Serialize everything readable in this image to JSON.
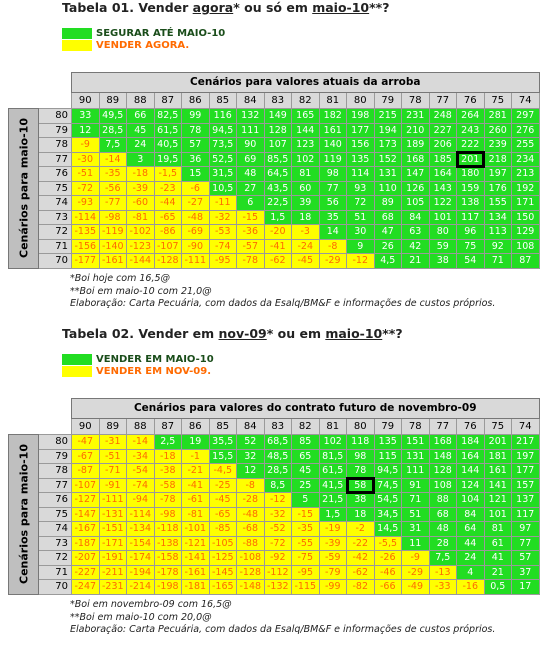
{
  "tables": [
    {
      "title": [
        "Tabela 01. Vender ",
        {
          "text": "agora",
          "underline": true
        },
        "* ou só em ",
        {
          "text": "maio-10",
          "underline": true
        },
        "**?"
      ],
      "legend": [
        {
          "label": "SEGURAR ATÉ MAIO-10",
          "color": "#22dd22"
        },
        {
          "label": "VENDER AGORA.",
          "color": "#ffff00"
        }
      ],
      "header": "Cenários para valores atuais da arroba",
      "row_axis_label": "Cenários para maio-10",
      "columns": [
        "90",
        "89",
        "88",
        "87",
        "86",
        "85",
        "84",
        "83",
        "82",
        "81",
        "80",
        "79",
        "78",
        "77",
        "76",
        "75",
        "74"
      ],
      "rows": [
        {
          "label": "80",
          "cells": [
            "33",
            "49,5",
            "66",
            "82,5",
            "99",
            "116",
            "132",
            "149",
            "165",
            "182",
            "198",
            "215",
            "231",
            "248",
            "264",
            "281",
            "297"
          ]
        },
        {
          "label": "79",
          "cells": [
            "12",
            "28,5",
            "45",
            "61,5",
            "78",
            "94,5",
            "111",
            "128",
            "144",
            "161",
            "177",
            "194",
            "210",
            "227",
            "243",
            "260",
            "276"
          ]
        },
        {
          "label": "78",
          "cells": [
            "-9",
            "7,5",
            "24",
            "40,5",
            "57",
            "73,5",
            "90",
            "107",
            "123",
            "140",
            "156",
            "173",
            "189",
            "206",
            "222",
            "239",
            "255"
          ]
        },
        {
          "label": "77",
          "cells": [
            "-30",
            "-14",
            "3",
            "19,5",
            "36",
            "52,5",
            "69",
            "85,5",
            "102",
            "119",
            "135",
            "152",
            "168",
            "185",
            "201",
            "218",
            "234"
          ]
        },
        {
          "label": "76",
          "cells": [
            "-51",
            "-35",
            "-18",
            "-1,5",
            "15",
            "31,5",
            "48",
            "64,5",
            "81",
            "98",
            "114",
            "131",
            "147",
            "164",
            "180",
            "197",
            "213"
          ]
        },
        {
          "label": "75",
          "cells": [
            "-72",
            "-56",
            "-39",
            "-23",
            "-6",
            "10,5",
            "27",
            "43,5",
            "60",
            "77",
            "93",
            "110",
            "126",
            "143",
            "159",
            "176",
            "192"
          ]
        },
        {
          "label": "74",
          "cells": [
            "-93",
            "-77",
            "-60",
            "-44",
            "-27",
            "-11",
            "6",
            "22,5",
            "39",
            "56",
            "72",
            "89",
            "105",
            "122",
            "138",
            "155",
            "171"
          ]
        },
        {
          "label": "73",
          "cells": [
            "-114",
            "-98",
            "-81",
            "-65",
            "-48",
            "-32",
            "-15",
            "1,5",
            "18",
            "35",
            "51",
            "68",
            "84",
            "101",
            "117",
            "134",
            "150"
          ]
        },
        {
          "label": "72",
          "cells": [
            "-135",
            "-119",
            "-102",
            "-86",
            "-69",
            "-53",
            "-36",
            "-20",
            "-3",
            "14",
            "30",
            "47",
            "63",
            "80",
            "96",
            "113",
            "129"
          ]
        },
        {
          "label": "71",
          "cells": [
            "-156",
            "-140",
            "-123",
            "-107",
            "-90",
            "-74",
            "-57",
            "-41",
            "-24",
            "-8",
            "9",
            "26",
            "42",
            "59",
            "75",
            "92",
            "108"
          ]
        },
        {
          "label": "70",
          "cells": [
            "-177",
            "-161",
            "-144",
            "-128",
            "-111",
            "-95",
            "-78",
            "-62",
            "-45",
            "-29",
            "-12",
            "4,5",
            "21",
            "38",
            "54",
            "71",
            "87"
          ]
        }
      ],
      "highlight": {
        "row": "77",
        "column": "76"
      },
      "notes": [
        "*Boi hoje com 16,5@",
        "**Boi em maio-10 com 21,0@",
        "Elaboração: Carta Pecuária, com dados da Esalq/BM&F e informações de custos próprios."
      ]
    },
    {
      "title": [
        "Tabela 02. Vender em ",
        {
          "text": "nov-09",
          "underline": true
        },
        "* ou em ",
        {
          "text": "maio-10",
          "underline": true
        },
        "**?"
      ],
      "legend": [
        {
          "label": "VENDER EM MAIO-10",
          "color": "#22dd22"
        },
        {
          "label": "VENDER EM NOV-09.",
          "color": "#ffff00"
        }
      ],
      "header": "Cenários para valores do contrato futuro de novembro-09",
      "row_axis_label": "Cenários para maio-10",
      "columns": [
        "90",
        "89",
        "88",
        "87",
        "86",
        "85",
        "84",
        "83",
        "82",
        "81",
        "80",
        "79",
        "78",
        "77",
        "76",
        "75",
        "74"
      ],
      "rows": [
        {
          "label": "80",
          "cells": [
            "-47",
            "-31",
            "-14",
            "2,5",
            "19",
            "35,5",
            "52",
            "68,5",
            "85",
            "102",
            "118",
            "135",
            "151",
            "168",
            "184",
            "201",
            "217"
          ]
        },
        {
          "label": "79",
          "cells": [
            "-67",
            "-51",
            "-34",
            "-18",
            "-1",
            "15,5",
            "32",
            "48,5",
            "65",
            "81,5",
            "98",
            "115",
            "131",
            "148",
            "164",
            "181",
            "197"
          ]
        },
        {
          "label": "78",
          "cells": [
            "-87",
            "-71",
            "-54",
            "-38",
            "-21",
            "-4,5",
            "12",
            "28,5",
            "45",
            "61,5",
            "78",
            "94,5",
            "111",
            "128",
            "144",
            "161",
            "177"
          ]
        },
        {
          "label": "77",
          "cells": [
            "-107",
            "-91",
            "-74",
            "-58",
            "-41",
            "-25",
            "-8",
            "8,5",
            "25",
            "41,5",
            "58",
            "74,5",
            "91",
            "108",
            "124",
            "141",
            "157"
          ]
        },
        {
          "label": "76",
          "cells": [
            "-127",
            "-111",
            "-94",
            "-78",
            "-61",
            "-45",
            "-28",
            "-12",
            "5",
            "21,5",
            "38",
            "54,5",
            "71",
            "88",
            "104",
            "121",
            "137"
          ]
        },
        {
          "label": "75",
          "cells": [
            "-147",
            "-131",
            "-114",
            "-98",
            "-81",
            "-65",
            "-48",
            "-32",
            "-15",
            "1,5",
            "18",
            "34,5",
            "51",
            "68",
            "84",
            "101",
            "117"
          ]
        },
        {
          "label": "74",
          "cells": [
            "-167",
            "-151",
            "-134",
            "-118",
            "-101",
            "-85",
            "-68",
            "-52",
            "-35",
            "-19",
            "-2",
            "14,5",
            "31",
            "48",
            "64",
            "81",
            "97"
          ]
        },
        {
          "label": "73",
          "cells": [
            "-187",
            "-171",
            "-154",
            "-138",
            "-121",
            "-105",
            "-88",
            "-72",
            "-55",
            "-39",
            "-22",
            "-5,5",
            "11",
            "28",
            "44",
            "61",
            "77"
          ]
        },
        {
          "label": "72",
          "cells": [
            "-207",
            "-191",
            "-174",
            "-158",
            "-141",
            "-125",
            "-108",
            "-92",
            "-75",
            "-59",
            "-42",
            "-26",
            "-9",
            "7,5",
            "24",
            "41",
            "57"
          ]
        },
        {
          "label": "71",
          "cells": [
            "-227",
            "-211",
            "-194",
            "-178",
            "-161",
            "-145",
            "-128",
            "-112",
            "-95",
            "-79",
            "-62",
            "-46",
            "-29",
            "-13",
            "4",
            "21",
            "37"
          ]
        },
        {
          "label": "70",
          "cells": [
            "-247",
            "-231",
            "-214",
            "-198",
            "-181",
            "-165",
            "-148",
            "-132",
            "-115",
            "-99",
            "-82",
            "-66",
            "-49",
            "-33",
            "-16",
            "0,5",
            "17"
          ]
        }
      ],
      "highlight": {
        "row": "77",
        "column": "80"
      },
      "notes": [
        "*Boi em novembro-09 com 16,5@",
        "**Boi em maio-10 com 20,0@",
        "Elaboração: Carta Pecuária, com dados da Esalq/BM&F e informações de custos próprios."
      ]
    }
  ]
}
